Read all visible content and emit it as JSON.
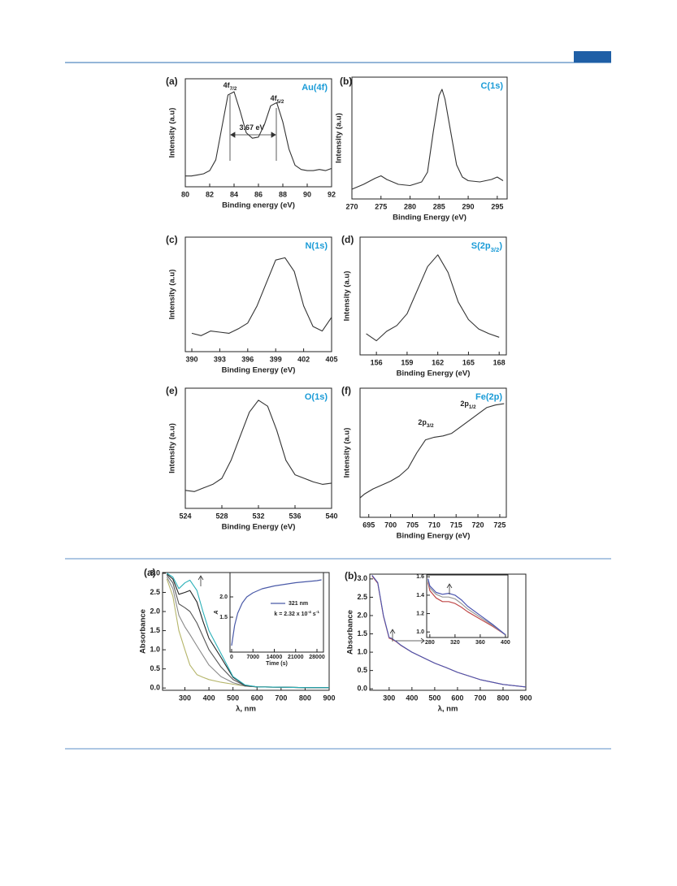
{
  "chart_data": [
    {
      "type": "line",
      "label": "(a)",
      "title": "Au(4f)",
      "xlabel": "Binding energy (eV)",
      "ylabel": "Intensity (a.u)",
      "xlim": [
        80,
        92
      ],
      "xticks": [
        80,
        82,
        84,
        86,
        88,
        90,
        92
      ],
      "ylim": [
        0,
        100
      ],
      "x": [
        80,
        80.5,
        81,
        81.5,
        82,
        82.5,
        83,
        83.5,
        84,
        84.5,
        85,
        85.5,
        86,
        86.5,
        87,
        87.5,
        88,
        88.5,
        89,
        89.5,
        90,
        90.5,
        91,
        91.5,
        92
      ],
      "series": [
        {
          "color": "#333333",
          "values": [
            10,
            10,
            11,
            12,
            15,
            25,
            55,
            85,
            88,
            70,
            50,
            45,
            46,
            58,
            75,
            78,
            60,
            35,
            20,
            16,
            15,
            15,
            16,
            15,
            17
          ]
        }
      ],
      "annotations": [
        [
          "4f",
          {
            "sub": "7/2"
          }
        ],
        [
          "4f",
          {
            "sub": "5/2"
          }
        ],
        [
          "3.67 eV"
        ]
      ]
    },
    {
      "type": "line",
      "label": "(b)",
      "title": "C(1s)",
      "xlabel": "Binding Energy (eV)",
      "ylabel": "Intensity (a.u)",
      "xlim": [
        270,
        296.7
      ],
      "xticks": [
        270,
        275,
        280,
        285,
        290,
        295
      ],
      "ylim": [
        0,
        100
      ],
      "x": [
        270,
        272,
        274,
        275,
        276,
        278,
        280,
        282,
        283,
        284,
        285,
        285.5,
        286,
        287,
        288,
        289,
        290,
        292,
        294,
        295,
        296
      ],
      "series": [
        {
          "color": "#333333",
          "values": [
            8,
            12,
            17,
            19,
            16,
            12,
            11,
            14,
            22,
            55,
            85,
            90,
            82,
            55,
            28,
            18,
            15,
            14,
            16,
            18,
            15
          ]
        }
      ]
    },
    {
      "type": "line",
      "label": "(c)",
      "title": "N(1s)",
      "xlabel": "Binding Energy (eV)",
      "ylabel": "Intensity (a.u)",
      "xlim": [
        389.3,
        405
      ],
      "xticks": [
        390,
        393,
        396,
        399,
        402,
        405
      ],
      "ylim": [
        0,
        100
      ],
      "x": [
        390,
        391,
        392,
        393,
        394,
        395,
        396,
        397,
        398,
        399,
        400,
        401,
        402,
        403,
        404,
        405
      ],
      "series": [
        {
          "color": "#333333",
          "values": [
            16,
            14,
            18,
            17,
            16,
            20,
            25,
            40,
            60,
            80,
            82,
            70,
            40,
            22,
            18,
            30
          ]
        }
      ]
    },
    {
      "type": "line",
      "label": "(d)",
      "title": [
        "S(2p",
        {
          "sub": "3/2"
        },
        ")"
      ],
      "xlabel": "Binding Energy (eV)",
      "ylabel": "Intensity (a.u)",
      "xlim": [
        154.4,
        168.7
      ],
      "xticks": [
        156,
        159,
        162,
        165,
        168
      ],
      "ylim": [
        0,
        100
      ],
      "x": [
        155,
        156,
        157,
        158,
        159,
        160,
        161,
        162,
        163,
        164,
        165,
        166,
        167,
        168
      ],
      "series": [
        {
          "color": "#333333",
          "values": [
            18,
            12,
            20,
            25,
            35,
            55,
            75,
            85,
            70,
            45,
            30,
            22,
            18,
            15
          ]
        }
      ]
    },
    {
      "type": "line",
      "label": "(e)",
      "title": "O(1s)",
      "xlabel": "Binding Energy (eV)",
      "ylabel": "Intensity (a.u)",
      "xlim": [
        524,
        540
      ],
      "xticks": [
        524,
        528,
        532,
        536,
        540
      ],
      "ylim": [
        0,
        100
      ],
      "x": [
        524,
        525,
        526,
        527,
        528,
        529,
        530,
        531,
        532,
        533,
        534,
        535,
        536,
        537,
        538,
        539,
        540
      ],
      "series": [
        {
          "color": "#333333",
          "values": [
            15,
            14,
            17,
            20,
            25,
            40,
            60,
            80,
            90,
            85,
            65,
            40,
            28,
            25,
            22,
            20,
            21
          ]
        }
      ]
    },
    {
      "type": "line",
      "label": "(f)",
      "title": "Fe(2p)",
      "xlabel": "Binding Energy (eV)",
      "ylabel": "Intensity (a.u)",
      "xlim": [
        693,
        726.5
      ],
      "xticks": [
        695,
        700,
        705,
        710,
        715,
        720,
        725
      ],
      "ylim": [
        0,
        100
      ],
      "x": [
        693,
        694,
        696,
        698,
        700,
        702,
        704,
        706,
        708,
        710,
        712,
        714,
        716,
        718,
        720,
        722,
        724,
        726
      ],
      "series": [
        {
          "color": "#333333",
          "values": [
            15,
            18,
            22,
            25,
            28,
            32,
            38,
            50,
            60,
            62,
            63,
            65,
            70,
            75,
            80,
            85,
            87,
            88
          ]
        }
      ],
      "annotations": [
        [
          "2p",
          {
            "sub": "3/2"
          }
        ],
        [
          "2p",
          {
            "sub": "1/2"
          }
        ]
      ]
    },
    {
      "type": "line",
      "label": "(a)",
      "xlabel": "λ, nm",
      "ylabel": "Absorbance",
      "xlim": [
        207,
        900
      ],
      "xticks": [
        300,
        400,
        500,
        600,
        700,
        800,
        900
      ],
      "ylim": [
        -0.06,
        3.02
      ],
      "yticks": [
        {
          "value": 0,
          "label": "0.0"
        },
        {
          "value": 0.5,
          "label": "0.5"
        },
        {
          "value": 1,
          "label": "1.0"
        },
        {
          "value": 1.5,
          "label": "1.5"
        },
        {
          "value": 2,
          "label": "2.0"
        },
        {
          "value": 2.5,
          "label": "2.5"
        },
        {
          "value": 3,
          "label": "3.0"
        }
      ],
      "x": [
        225,
        250,
        275,
        300,
        321,
        350,
        375,
        400,
        450,
        500,
        550,
        600,
        700,
        800,
        900
      ],
      "series": [
        {
          "color": "#b5b56a",
          "values": [
            2.85,
            2.4,
            1.5,
            1.0,
            0.6,
            0.35,
            0.28,
            0.22,
            0.15,
            0.1,
            0.05,
            0.03,
            0.02,
            0.01,
            0.01
          ]
        },
        {
          "color": "#8a8a8a",
          "values": [
            2.9,
            2.6,
            1.9,
            1.6,
            1.4,
            1.1,
            0.85,
            0.6,
            0.3,
            0.14,
            0.05,
            0.03,
            0.02,
            0.01,
            0.01
          ]
        },
        {
          "color": "#555555",
          "values": [
            2.95,
            2.75,
            2.2,
            2.1,
            2.0,
            1.7,
            1.35,
            1.0,
            0.55,
            0.22,
            0.06,
            0.03,
            0.02,
            0.01,
            0.01
          ]
        },
        {
          "color": "#222222",
          "values": [
            2.98,
            2.85,
            2.45,
            2.5,
            2.55,
            2.25,
            1.75,
            1.3,
            0.8,
            0.28,
            0.07,
            0.03,
            0.02,
            0.01,
            0.01
          ]
        },
        {
          "color": "#2ab0b8",
          "values": [
            3.0,
            2.9,
            2.6,
            2.75,
            2.82,
            2.55,
            2.0,
            1.5,
            0.9,
            0.3,
            0.08,
            0.03,
            0.02,
            0.01,
            0.01
          ]
        }
      ]
    },
    {
      "type": "line",
      "inset": true,
      "xlabel": "Time (s)",
      "ylabel": "A",
      "xlim": [
        -533,
        30133
      ],
      "xticks": [
        0,
        7000,
        14000,
        21000,
        28000
      ],
      "ylim": [
        0.64,
        2.6
      ],
      "yticks": [
        {
          "value": 1.5,
          "label": "1.5"
        },
        {
          "value": 2,
          "label": "2.0"
        }
      ],
      "x": [
        0,
        1000,
        2000,
        3500,
        5000,
        7000,
        10000,
        14000,
        21000,
        28000,
        29500
      ],
      "series": [
        {
          "name": "321 nm",
          "color": "#4a5aa8",
          "values": [
            0.8,
            1.3,
            1.6,
            1.85,
            2.0,
            2.1,
            2.2,
            2.27,
            2.35,
            2.4,
            2.42
          ]
        }
      ],
      "annotations": [
        [
          "k = 2.32 x 10",
          {
            "sup": "-4"
          },
          " s",
          {
            "sup": "-1"
          }
        ]
      ]
    },
    {
      "type": "line",
      "label": "(b)",
      "xlabel": "λ, nm",
      "ylabel": "Absorbance",
      "xlim": [
        215,
        900
      ],
      "xticks": [
        300,
        400,
        500,
        600,
        700,
        800,
        900
      ],
      "ylim": [
        -0.04,
        3.13
      ],
      "yticks": [
        {
          "value": 0,
          "label": "0.0"
        },
        {
          "value": 0.5,
          "label": "0.5"
        },
        {
          "value": 1,
          "label": "1.0"
        },
        {
          "value": 1.5,
          "label": "1.5"
        },
        {
          "value": 2,
          "label": "2.0"
        },
        {
          "value": 2.5,
          "label": "2.5"
        },
        {
          "value": 3,
          "label": "3.0"
        }
      ],
      "x": [
        225,
        250,
        275,
        300,
        310,
        330,
        350,
        400,
        450,
        500,
        550,
        600,
        700,
        800,
        900
      ],
      "series": [
        {
          "color": "#c04a4a",
          "values": [
            3.08,
            2.88,
            1.98,
            1.38,
            1.36,
            1.29,
            1.19,
            1.0,
            0.85,
            0.7,
            0.58,
            0.45,
            0.25,
            0.12,
            0.05
          ]
        },
        {
          "color": "#4a55b0",
          "values": [
            3.1,
            2.9,
            2.0,
            1.4,
            1.38,
            1.3,
            1.2,
            1.0,
            0.85,
            0.7,
            0.58,
            0.45,
            0.25,
            0.12,
            0.05
          ]
        }
      ]
    },
    {
      "type": "line",
      "inset": true,
      "xlim": [
        275,
        404
      ],
      "xticks": [
        280,
        320,
        360,
        400
      ],
      "ylim": [
        0.94,
        1.62
      ],
      "yticks": [
        {
          "value": 1,
          "label": "1.0"
        },
        {
          "value": 1.2,
          "label": "1.2"
        },
        {
          "value": 1.4,
          "label": "1.4"
        },
        {
          "value": 1.6,
          "label": "1.6"
        }
      ],
      "x": [
        277,
        280,
        290,
        300,
        310,
        320,
        330,
        340,
        360,
        380,
        400
      ],
      "series": [
        {
          "color": "#c04a4a",
          "values": [
            1.54,
            1.45,
            1.37,
            1.33,
            1.33,
            1.31,
            1.27,
            1.22,
            1.14,
            1.06,
            0.97
          ]
        },
        {
          "color": "#999999",
          "values": [
            1.56,
            1.48,
            1.41,
            1.38,
            1.38,
            1.36,
            1.31,
            1.25,
            1.16,
            1.07,
            0.97
          ]
        },
        {
          "color": "#4a55b0",
          "values": [
            1.58,
            1.5,
            1.43,
            1.41,
            1.42,
            1.4,
            1.35,
            1.28,
            1.18,
            1.08,
            0.97
          ]
        }
      ]
    }
  ]
}
